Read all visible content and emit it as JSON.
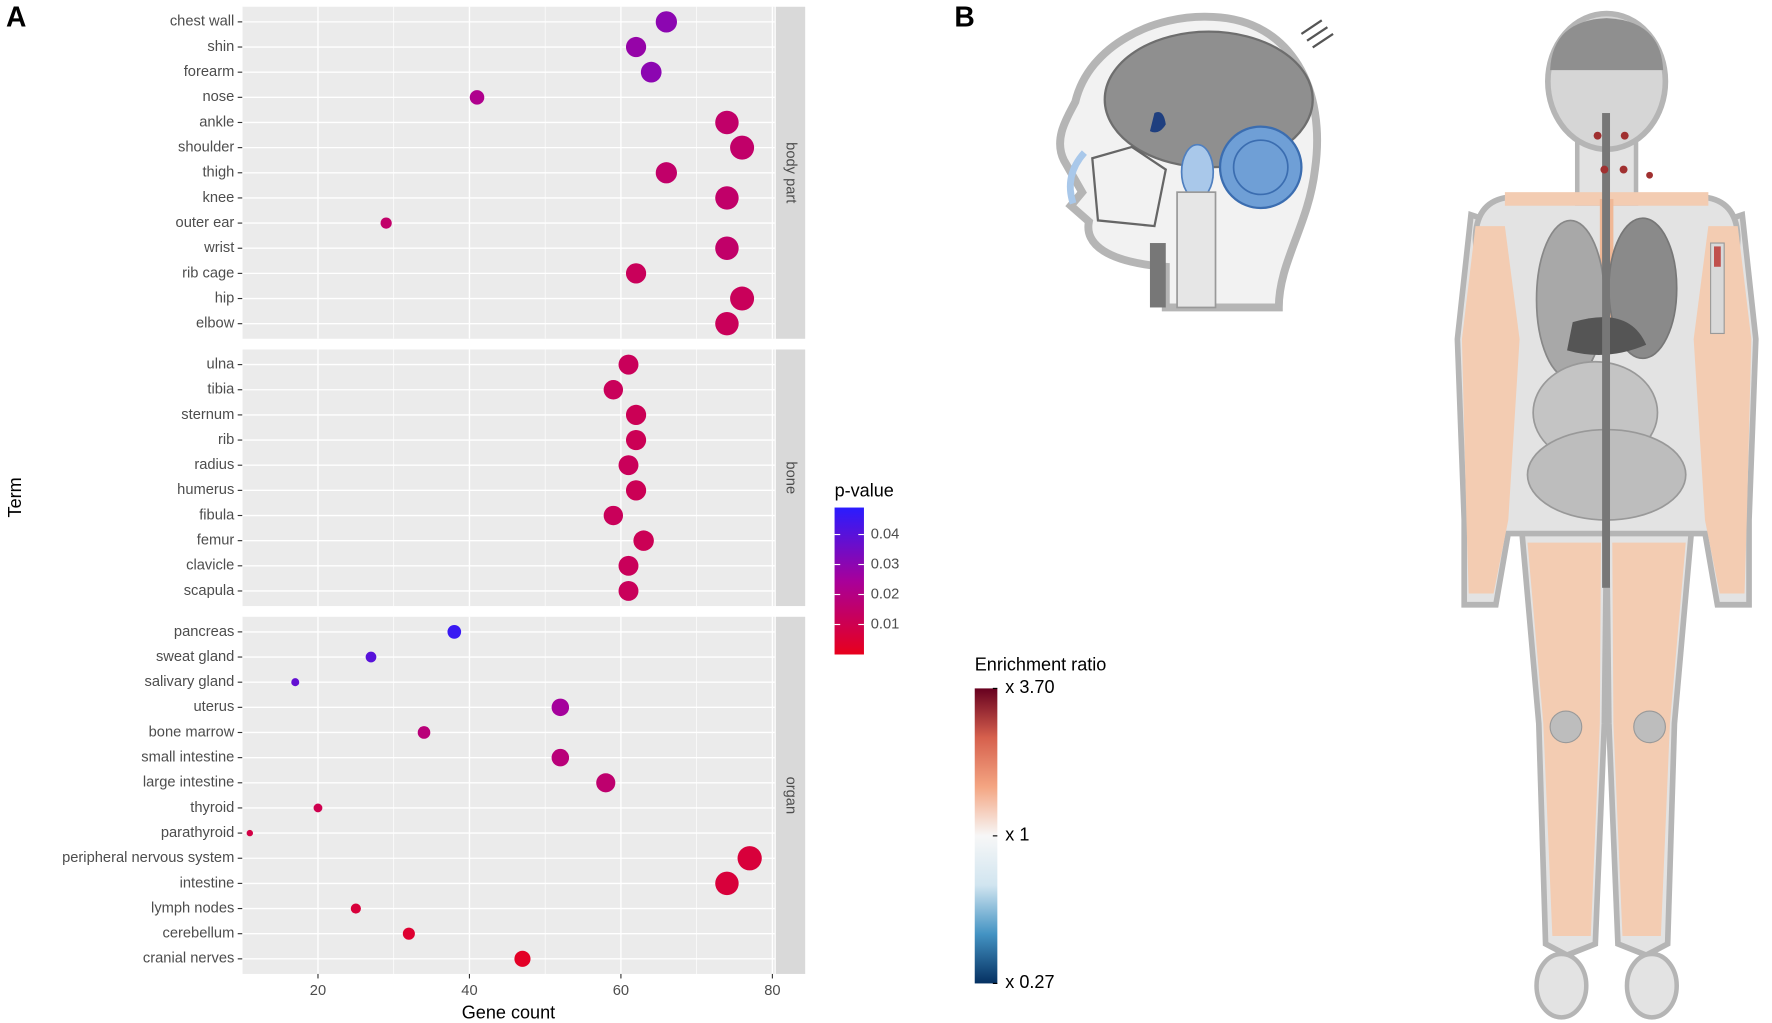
{
  "panel_labels": [
    "A",
    "B"
  ],
  "chart_data": [
    {
      "type": "dotplot",
      "x_label": "Gene count",
      "y_label": "Term",
      "xlim": [
        10,
        80.3
      ],
      "xticks": [
        20,
        40,
        60,
        80
      ],
      "grid": true,
      "color_legend": {
        "title": "p-value",
        "lim": [
          0,
          0.049
        ],
        "ticks": [
          0.01,
          0.02,
          0.03,
          0.04
        ],
        "colors": [
          "#e8001c",
          "#a8009a",
          "#2a1cff"
        ]
      },
      "facets": [
        {
          "name": "body part",
          "categories": [
            "chest wall",
            "shin",
            "forearm",
            "nose",
            "ankle",
            "shoulder",
            "thigh",
            "knee",
            "outer ear",
            "wrist",
            "rib cage",
            "hip",
            "elbow"
          ],
          "x": [
            66,
            62,
            64,
            41,
            74,
            76,
            66,
            74,
            29,
            74,
            62,
            76,
            74
          ],
          "p_values": [
            0.03,
            0.028,
            0.03,
            0.022,
            0.015,
            0.015,
            0.015,
            0.015,
            0.015,
            0.015,
            0.012,
            0.012,
            0.012
          ]
        },
        {
          "name": "bone",
          "categories": [
            "ulna",
            "tibia",
            "sternum",
            "rib",
            "radius",
            "humerus",
            "fibula",
            "femur",
            "clavicle",
            "scapula"
          ],
          "x": [
            61,
            59,
            62,
            62,
            61,
            62,
            59,
            63,
            61,
            61
          ],
          "p_values": [
            0.012,
            0.012,
            0.011,
            0.011,
            0.012,
            0.011,
            0.012,
            0.011,
            0.012,
            0.012
          ]
        },
        {
          "name": "organ",
          "categories": [
            "pancreas",
            "sweat gland",
            "salivary gland",
            "uterus",
            "bone marrow",
            "small intestine",
            "large intestine",
            "thyroid",
            "parathyroid",
            "peripheral nervous system",
            "intestine",
            "lymph nodes",
            "cerebellum",
            "cranial nerves"
          ],
          "x": [
            38,
            27,
            17,
            52,
            34,
            52,
            58,
            20,
            11,
            77,
            74,
            25,
            32,
            47
          ],
          "p_values": [
            0.046,
            0.04,
            0.038,
            0.025,
            0.018,
            0.018,
            0.016,
            0.01,
            0.008,
            0.006,
            0.006,
            0.006,
            0.004,
            0.002
          ]
        }
      ]
    },
    {
      "type": "anatomogram",
      "legend": {
        "title": "Enrichment ratio",
        "log": true,
        "lim": [
          0.27,
          3.7
        ],
        "ticks": [
          {
            "value": 3.7,
            "label": "x 3.70"
          },
          {
            "value": 1,
            "label": "x 1"
          },
          {
            "value": 0.27,
            "label": "x 0.27"
          }
        ],
        "colors": [
          "#053061",
          "#4393c3",
          "#d1e5f0",
          "#f7f7f7",
          "#f4a582",
          "#d6604d",
          "#67001f"
        ]
      }
    }
  ]
}
